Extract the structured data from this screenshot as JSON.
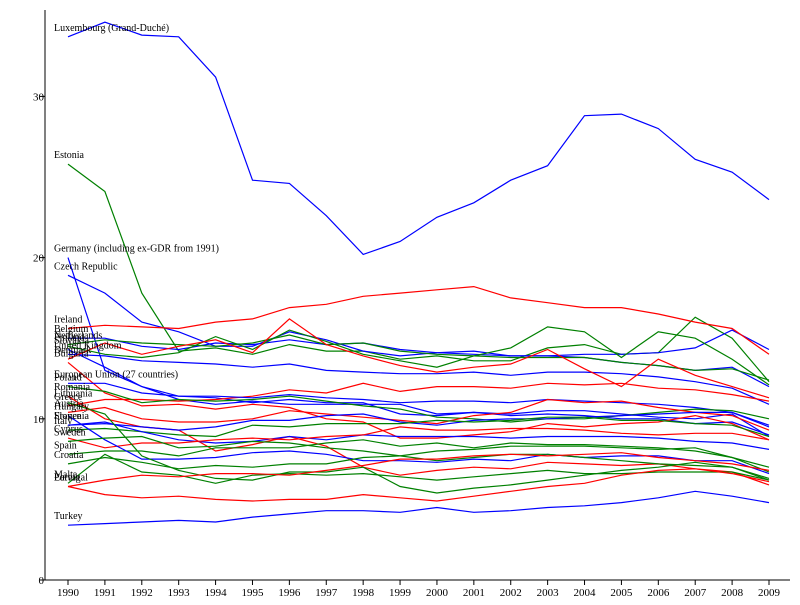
{
  "chart_data": {
    "type": "line",
    "title": "",
    "xlabel": "",
    "ylabel": "",
    "xlim": [
      1990,
      2009
    ],
    "ylim": [
      0,
      35
    ],
    "x_ticks": [
      "1990",
      "1991",
      "1992",
      "1993",
      "1994",
      "1995",
      "1996",
      "1997",
      "1998",
      "1999",
      "2000",
      "2001",
      "2002",
      "2003",
      "2004",
      "2005",
      "2006",
      "2007",
      "2008",
      "2009"
    ],
    "y_ticks": [
      "0",
      "10",
      "20",
      "30"
    ],
    "grid": false,
    "legend": "none",
    "x": [
      1990,
      1991,
      1992,
      1993,
      1994,
      1995,
      1996,
      1997,
      1998,
      1999,
      2000,
      2001,
      2002,
      2003,
      2004,
      2005,
      2006,
      2007,
      2008,
      2009
    ],
    "series": [
      {
        "name": "Luxembourg (Grand-Duché)",
        "color": "#0000ff",
        "values": [
          33.7,
          34.6,
          33.8,
          33.7,
          31.2,
          24.8,
          24.6,
          22.6,
          20.2,
          21.0,
          22.5,
          23.4,
          24.8,
          25.7,
          28.8,
          28.9,
          28.0,
          26.1,
          25.3,
          23.6
        ]
      },
      {
        "name": "Estonia",
        "color": "#008000",
        "values": [
          25.8,
          24.1,
          17.8,
          14.2,
          14.4,
          14.0,
          14.6,
          14.2,
          14.2,
          13.7,
          13.9,
          13.6,
          13.6,
          14.4,
          14.6,
          14.0,
          14.1,
          16.3,
          15.0,
          12.3
        ]
      },
      {
        "name": "Germany (including ex-GDR from 1991)",
        "color": "#0000ff",
        "values": [
          20.0,
          13.0,
          12.0,
          11.4,
          11.3,
          11.0,
          11.2,
          11.0,
          11.0,
          10.3,
          10.2,
          10.4,
          10.2,
          10.3,
          10.2,
          10.0,
          10.0,
          9.7,
          9.8,
          9.0
        ]
      },
      {
        "name": "Czech Republic",
        "color": "#0000ff",
        "values": [
          18.9,
          17.8,
          16.0,
          15.4,
          14.5,
          14.5,
          15.4,
          14.9,
          14.2,
          13.9,
          14.1,
          14.2,
          13.9,
          13.9,
          14.0,
          14.0,
          14.1,
          14.4,
          15.5,
          14.3
        ]
      },
      {
        "name": "Ireland",
        "color": "#ff0000",
        "values": [
          15.6,
          15.8,
          15.7,
          15.6,
          16.0,
          16.2,
          16.9,
          17.1,
          17.6,
          17.8,
          18.0,
          18.2,
          17.5,
          17.2,
          16.9,
          16.9,
          16.5,
          16.0,
          15.6,
          14.0
        ]
      },
      {
        "name": "Belgium",
        "color": "#0000ff",
        "values": [
          15.0,
          15.0,
          14.5,
          14.3,
          14.7,
          14.6,
          14.9,
          14.6,
          14.7,
          14.3,
          14.1,
          14.0,
          13.9,
          13.9,
          13.8,
          13.5,
          13.3,
          13.0,
          13.2,
          12.0
        ]
      },
      {
        "name": "Netherlands",
        "color": "#008000",
        "values": [
          14.6,
          14.9,
          14.7,
          14.6,
          14.5,
          14.7,
          15.2,
          14.6,
          14.7,
          14.2,
          14.0,
          13.9,
          13.8,
          13.8,
          13.8,
          13.5,
          13.3,
          13.0,
          13.1,
          12.4
        ]
      },
      {
        "name": "Finland",
        "color": "#008000",
        "values": [
          14.5,
          14.0,
          13.8,
          14.1,
          15.1,
          14.3,
          15.5,
          14.8,
          14.0,
          13.6,
          13.2,
          13.9,
          14.4,
          15.7,
          15.4,
          13.8,
          15.4,
          15.0,
          13.7,
          12.1
        ]
      },
      {
        "name": "Slovakia",
        "color": "#0000ff",
        "values": [
          14.3,
          13.2,
          12.0,
          11.2,
          10.9,
          11.1,
          10.9,
          10.9,
          10.9,
          10.9,
          10.3,
          10.4,
          10.3,
          10.5,
          10.5,
          10.3,
          10.1,
          10.0,
          10.3,
          8.9
        ]
      },
      {
        "name": "United Kingdom",
        "color": "#0000ff",
        "values": [
          14.0,
          13.9,
          13.6,
          13.5,
          13.4,
          13.2,
          13.4,
          13.0,
          12.9,
          12.8,
          12.8,
          12.9,
          12.7,
          12.9,
          12.9,
          12.8,
          12.6,
          12.3,
          11.9,
          10.9
        ]
      },
      {
        "name": "Denmark",
        "color": "#ff0000",
        "values": [
          13.7,
          14.7,
          14.0,
          14.5,
          14.9,
          14.1,
          16.2,
          14.6,
          13.9,
          13.3,
          12.9,
          13.2,
          13.4,
          14.3,
          13.1,
          12.0,
          13.7,
          12.7,
          12.0,
          11.3
        ]
      },
      {
        "name": "Greece",
        "color": "#ff0000",
        "values": [
          10.8,
          11.2,
          11.2,
          11.1,
          11.2,
          11.4,
          11.8,
          11.6,
          12.2,
          11.7,
          12.0,
          12.0,
          11.9,
          12.2,
          12.1,
          12.2,
          11.9,
          11.8,
          11.5,
          11.1
        ]
      },
      {
        "name": "Bulgaria",
        "color": "#ff0000",
        "values": [
          13.5,
          11.6,
          10.8,
          10.9,
          10.6,
          10.9,
          10.7,
          10.0,
          9.8,
          8.8,
          8.8,
          9.0,
          9.2,
          9.7,
          9.5,
          9.7,
          9.8,
          10.2,
          9.7,
          8.7
        ]
      },
      {
        "name": "European Union (27 countries)",
        "color": "#0000ff",
        "values": [
          12.2,
          12.2,
          11.6,
          11.4,
          11.4,
          11.3,
          11.5,
          11.3,
          11.2,
          11.0,
          11.1,
          11.1,
          11.0,
          11.2,
          11.1,
          11.0,
          10.9,
          10.7,
          10.4,
          9.5
        ]
      },
      {
        "name": "Poland",
        "color": "#008000",
        "values": [
          12.0,
          11.7,
          11.0,
          11.2,
          11.1,
          11.2,
          11.4,
          11.1,
          10.8,
          10.6,
          10.1,
          10.0,
          9.8,
          10.0,
          10.0,
          10.2,
          10.4,
          10.6,
          10.5,
          10.0
        ]
      },
      {
        "name": "Austria",
        "color": "#ff0000",
        "values": [
          10.4,
          10.7,
          10.0,
          9.8,
          9.8,
          10.0,
          10.5,
          10.3,
          10.1,
          9.9,
          9.7,
          10.2,
          10.4,
          11.2,
          11.0,
          11.1,
          10.7,
          10.4,
          10.2,
          9.3
        ]
      },
      {
        "name": "Romania",
        "color": "#ff0000",
        "values": [
          11.4,
          10.0,
          9.5,
          9.3,
          8.0,
          8.4,
          8.9,
          8.3,
          7.0,
          6.5,
          6.8,
          7.0,
          6.9,
          7.3,
          7.2,
          7.1,
          7.2,
          6.9,
          6.7,
          5.9
        ]
      },
      {
        "name": "Slovenia",
        "color": "#0000ff",
        "values": [
          9.6,
          9.7,
          9.5,
          9.3,
          9.5,
          9.9,
          9.9,
          10.2,
          10.3,
          9.8,
          9.6,
          9.9,
          10.0,
          10.0,
          10.1,
          10.2,
          10.3,
          10.4,
          10.4,
          9.6
        ]
      },
      {
        "name": "Italy",
        "color": "#008000",
        "values": [
          9.3,
          9.4,
          9.2,
          9.0,
          8.9,
          9.6,
          9.5,
          9.7,
          9.7,
          9.7,
          9.9,
          9.8,
          9.9,
          10.1,
          10.1,
          9.9,
          9.9,
          9.7,
          9.6,
          8.9
        ]
      },
      {
        "name": "Malta",
        "color": "#008000",
        "values": [
          6.0,
          7.8,
          6.7,
          6.5,
          6.0,
          6.5,
          6.6,
          6.5,
          6.6,
          6.4,
          6.2,
          6.4,
          6.6,
          6.8,
          6.6,
          6.6,
          6.7,
          6.7,
          6.7,
          6.2
        ]
      },
      {
        "name": "France",
        "color": "#0000ff",
        "values": [
          9.6,
          9.8,
          9.2,
          8.7,
          8.5,
          8.6,
          8.9,
          8.7,
          9.0,
          8.9,
          8.9,
          8.9,
          8.8,
          8.9,
          8.9,
          8.9,
          8.8,
          8.6,
          8.5,
          8.1
        ]
      },
      {
        "name": "Spain",
        "color": "#008000",
        "values": [
          7.8,
          8.0,
          8.0,
          7.7,
          8.2,
          8.2,
          8.2,
          8.5,
          8.7,
          8.3,
          8.5,
          8.2,
          8.5,
          8.4,
          8.4,
          8.3,
          8.2,
          8.0,
          7.6,
          6.7
        ]
      },
      {
        "name": "Cyprus",
        "color": "#ff0000",
        "values": [
          8.8,
          8.2,
          8.5,
          8.5,
          8.7,
          8.8,
          8.7,
          8.9,
          9.0,
          9.5,
          9.3,
          9.3,
          9.4,
          9.4,
          9.3,
          9.1,
          9.0,
          9.1,
          9.1,
          8.7
        ]
      },
      {
        "name": "Hungary",
        "color": "#0000ff",
        "values": [
          10.2,
          8.7,
          7.5,
          7.5,
          7.6,
          7.9,
          8.0,
          7.8,
          7.4,
          7.4,
          7.3,
          7.5,
          7.4,
          7.8,
          7.6,
          7.7,
          7.7,
          7.4,
          7.4,
          6.6
        ]
      },
      {
        "name": "Sweden",
        "color": "#008000",
        "values": [
          8.6,
          8.8,
          8.9,
          8.2,
          8.3,
          8.6,
          8.5,
          8.2,
          8.0,
          7.7,
          7.4,
          7.6,
          7.8,
          7.8,
          7.6,
          7.4,
          7.2,
          7.1,
          7.0,
          6.3
        ]
      },
      {
        "name": "Lithuania",
        "color": "#008000",
        "values": [
          11.0,
          10.3,
          7.7,
          6.8,
          6.3,
          6.2,
          6.7,
          6.7,
          7.0,
          5.8,
          5.4,
          5.7,
          5.9,
          6.2,
          6.5,
          6.8,
          7.0,
          7.3,
          7.0,
          6.2
        ]
      },
      {
        "name": "Latvia",
        "color": "#ff0000",
        "values": [
          5.8,
          5.3,
          5.1,
          5.2,
          5.0,
          4.9,
          5.0,
          5.0,
          5.3,
          5.1,
          4.9,
          5.2,
          5.5,
          5.8,
          6.0,
          6.5,
          6.8,
          6.9,
          6.6,
          6.1
        ]
      },
      {
        "name": "Croatia",
        "color": "#008000",
        "values": [
          7.2,
          7.6,
          7.3,
          6.9,
          7.1,
          7.0,
          7.2,
          7.2,
          7.6,
          7.7,
          8.0,
          8.1,
          8.3,
          8.3,
          8.3,
          8.2,
          8.1,
          8.2,
          7.6,
          7.0
        ]
      },
      {
        "name": "Portugal",
        "color": "#ff0000",
        "values": [
          5.8,
          6.2,
          6.5,
          6.4,
          6.6,
          6.6,
          6.5,
          6.8,
          7.1,
          7.5,
          7.5,
          7.7,
          7.8,
          7.7,
          7.8,
          7.9,
          7.6,
          7.4,
          7.2,
          6.8
        ]
      },
      {
        "name": "Turkey",
        "color": "#0000ff",
        "values": [
          3.4,
          3.5,
          3.6,
          3.7,
          3.6,
          3.9,
          4.1,
          4.3,
          4.3,
          4.2,
          4.5,
          4.2,
          4.3,
          4.5,
          4.6,
          4.8,
          5.1,
          5.5,
          5.2,
          4.8
        ]
      }
    ],
    "labels": [
      "Luxembourg (Grand-Duché)",
      "Estonia",
      "Germany (including ex-GDR from 1991)",
      "Czech Republic",
      "Ireland",
      "Belgium",
      "Netherlands",
      "Finland",
      "Slovakia",
      "United Kingdom",
      "Denmark",
      "Greece",
      "Bulgaria",
      "European Union (27 countries)",
      "Poland",
      "Austria",
      "Romania",
      "Slovenia",
      "Italy",
      "Malta",
      "France",
      "Spain",
      "Cyprus",
      "Hungary",
      "Sweden",
      "Lithuania",
      "Latvia",
      "Croatia",
      "Portugal",
      "Turkey"
    ]
  }
}
